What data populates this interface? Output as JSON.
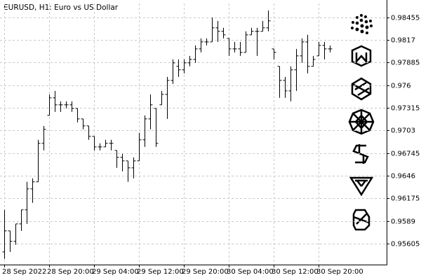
{
  "chart_data": {
    "type": "ohlc",
    "title": "EURUSD, H1:  Euro vs US Dollar",
    "color": "#000000",
    "grid": true,
    "categories": [
      "28 Sep 2022",
      null,
      null,
      null,
      null,
      null,
      null,
      null,
      "28 Sep 20:00",
      null,
      null,
      null,
      null,
      null,
      null,
      null,
      "29 Sep 04:00",
      null,
      null,
      null,
      null,
      null,
      null,
      null,
      "29 Sep 12:00",
      null,
      null,
      null,
      null,
      null,
      null,
      null,
      "29 Sep 20:00",
      null,
      null,
      null,
      null,
      null,
      null,
      null,
      "30 Sep 04:00",
      null,
      null,
      null,
      null,
      null,
      null,
      null,
      "30 Sep 12:00",
      null,
      null,
      null,
      null,
      null,
      null,
      null,
      "30 Sep 20:00",
      null,
      null
    ],
    "open": [
      0.955,
      0.95765,
      0.95633,
      0.95853,
      0.9603,
      0.96294,
      0.96383,
      0.96868,
      0.9722,
      0.97441,
      0.97353,
      0.97353,
      0.97353,
      0.97308,
      0.97176,
      0.97088,
      0.96956,
      0.96823,
      0.96823,
      0.96868,
      0.96779,
      0.96691,
      0.96647,
      0.96559,
      0.96647,
      0.96912,
      0.97176,
      0.97308,
      0.97353,
      0.97485,
      0.97661,
      0.97838,
      0.97794,
      0.97882,
      0.97926,
      0.98058,
      0.98146,
      0.98146,
      0.98323,
      0.98279,
      0.9819,
      0.98058,
      0.98058,
      0.98014,
      0.98235,
      0.98279,
      0.98279,
      0.98323,
      0.98058,
      0.97838,
      0.97661,
      0.97529,
      0.97794,
      0.9797,
      0.98146,
      0.97838,
      0.9797,
      0.98102,
      0.98058
    ],
    "high": [
      0.9603,
      0.95765,
      0.95853,
      0.9603,
      0.96383,
      0.96427,
      0.96912,
      0.97088,
      0.97485,
      0.97529,
      0.97397,
      0.97397,
      0.97397,
      0.97308,
      0.97176,
      0.97088,
      0.96956,
      0.96868,
      0.96912,
      0.96912,
      0.96779,
      0.96735,
      0.96647,
      0.96691,
      0.97,
      0.9722,
      0.97485,
      0.97308,
      0.97529,
      0.97705,
      0.97926,
      0.97926,
      0.97926,
      0.9797,
      0.98102,
      0.9819,
      0.9819,
      0.98455,
      0.98411,
      0.98323,
      0.9819,
      0.98146,
      0.98146,
      0.98279,
      0.98323,
      0.98323,
      0.98411,
      0.98543,
      0.98058,
      0.97838,
      0.97705,
      0.97838,
      0.98058,
      0.9819,
      0.98235,
      0.9797,
      0.98146,
      0.98146,
      0.98102
    ],
    "low": [
      0.95412,
      0.955,
      0.95589,
      0.95765,
      0.95853,
      0.96118,
      0.96383,
      0.96779,
      0.9722,
      0.97264,
      0.97264,
      0.97308,
      0.97264,
      0.97132,
      0.97044,
      0.96912,
      0.96779,
      0.96779,
      0.96823,
      0.96779,
      0.96559,
      0.96515,
      0.96383,
      0.96427,
      0.96647,
      0.96823,
      0.97044,
      0.96823,
      0.97353,
      0.97176,
      0.97617,
      0.97705,
      0.97749,
      0.97838,
      0.97882,
      0.98014,
      0.98102,
      0.98146,
      0.98146,
      0.9819,
      0.9797,
      0.98014,
      0.9797,
      0.98014,
      0.98235,
      0.9797,
      0.98279,
      0.98279,
      0.97926,
      0.97441,
      0.97441,
      0.97397,
      0.97529,
      0.97882,
      0.97749,
      0.97838,
      0.9797,
      0.97926,
      0.98014
    ],
    "close": [
      0.95765,
      0.95633,
      0.95853,
      0.9603,
      0.96294,
      0.96383,
      0.96868,
      0.97044,
      0.97441,
      0.97353,
      0.97353,
      0.97353,
      0.97308,
      0.97176,
      0.97088,
      0.96956,
      0.96823,
      0.96823,
      0.96868,
      0.96868,
      0.96691,
      0.96647,
      0.96559,
      0.96647,
      0.96912,
      0.97176,
      0.97353,
      0.96868,
      0.97485,
      0.97661,
      0.97882,
      0.97794,
      0.97882,
      0.97926,
      0.98058,
      0.98146,
      0.98146,
      0.98323,
      0.98279,
      0.98235,
      0.98058,
      0.98058,
      0.98014,
      0.98235,
      0.98279,
      0.98279,
      0.98323,
      0.98411,
      0.98014,
      0.97661,
      0.97529,
      0.97794,
      0.9797,
      0.98146,
      0.97838,
      0.97926,
      0.98102,
      0.98058,
      0.98058
    ],
    "ylim": [
      0.9534,
      0.9863
    ],
    "yticks": [
      0.95605,
      0.9589,
      0.96175,
      0.9646,
      0.96745,
      0.9703,
      0.97315,
      0.976,
      0.97885,
      0.9817,
      0.98455
    ]
  }
}
